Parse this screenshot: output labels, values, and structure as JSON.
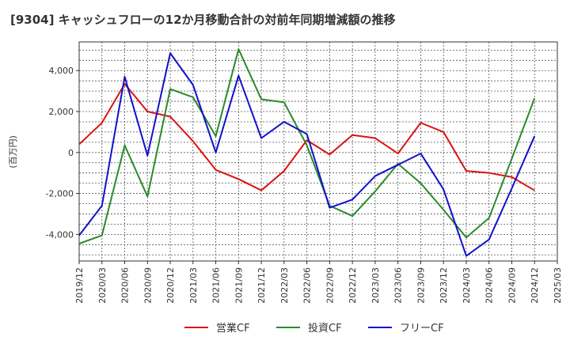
{
  "chart_data": {
    "type": "line",
    "title": "[9304]  キャッシュフローの12か月移動合計の対前年同期増減額の推移",
    "ylabel": "(百万円)",
    "xlabel": "",
    "x": [
      "2019/12",
      "2020/03",
      "2020/06",
      "2020/09",
      "2020/12",
      "2021/03",
      "2021/06",
      "2021/09",
      "2021/12",
      "2022/03",
      "2022/06",
      "2022/09",
      "2022/12",
      "2023/03",
      "2023/06",
      "2023/09",
      "2023/12",
      "2024/03",
      "2024/06",
      "2024/09",
      "2024/12",
      "2025/03"
    ],
    "ylim": [
      -5300,
      5400
    ],
    "yticks": [
      -4000,
      -2000,
      0,
      2000,
      4000
    ],
    "ytick_labels": [
      "-4,000",
      "-2,000",
      "0",
      "2,000",
      "4,000"
    ],
    "grid": true,
    "legend_position": "bottom",
    "series": [
      {
        "name": "営業CF",
        "color": "#dd1111",
        "values": [
          400,
          1450,
          3350,
          2000,
          1750,
          550,
          -850,
          -1300,
          -1850,
          -900,
          600,
          -100,
          850,
          700,
          -50,
          1450,
          1000,
          -900,
          -1000,
          -1200,
          -1850,
          null
        ]
      },
      {
        "name": "投資CF",
        "color": "#2a8a2a",
        "values": [
          -4450,
          -4050,
          350,
          -2150,
          3100,
          2700,
          800,
          5050,
          2600,
          2450,
          350,
          -2600,
          -3100,
          -1900,
          -550,
          -1500,
          -2800,
          -4150,
          -3200,
          -300,
          2650,
          null
        ]
      },
      {
        "name": "フリーCF",
        "color": "#1111cc",
        "values": [
          -4050,
          -2600,
          3700,
          -150,
          4850,
          3300,
          0,
          3750,
          700,
          1500,
          900,
          -2700,
          -2300,
          -1150,
          -600,
          -50,
          -1800,
          -5050,
          -4250,
          -1750,
          800,
          null
        ]
      }
    ]
  }
}
